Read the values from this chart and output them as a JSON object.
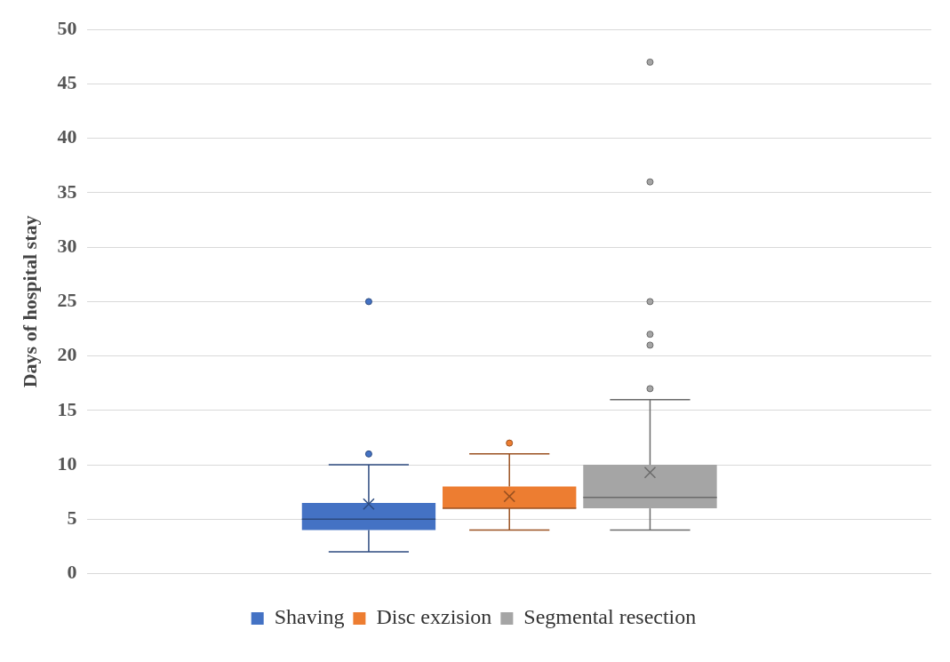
{
  "chart_data": {
    "type": "box",
    "ylabel": "Days of hospital stay",
    "categories": [
      null
    ],
    "ylim": [
      0,
      50
    ],
    "yticks": [
      0,
      5,
      10,
      15,
      20,
      25,
      30,
      35,
      40,
      45,
      50
    ],
    "grid": "y",
    "legend": "bottom",
    "series": [
      {
        "name": "Shaving",
        "color": "#4472c4",
        "boxes": [
          {
            "low": 2,
            "q1": 4,
            "median": 5,
            "q3": 6.5,
            "high": 10,
            "mean": 6.4,
            "outliers": [
              11,
              25
            ]
          }
        ]
      },
      {
        "name": "Disc exzision",
        "color": "#ed7d31",
        "boxes": [
          {
            "low": 4,
            "q1": 6,
            "median": 6,
            "q3": 8,
            "high": 11,
            "mean": 7.1,
            "outliers": [
              12
            ]
          }
        ]
      },
      {
        "name": "Segmental resection",
        "color": "#a5a5a5",
        "boxes": [
          {
            "low": 4,
            "q1": 6,
            "median": 7,
            "q3": 10,
            "high": 16,
            "mean": 9.3,
            "outliers": [
              17,
              21,
              22,
              25,
              36,
              47
            ]
          }
        ]
      }
    ]
  }
}
